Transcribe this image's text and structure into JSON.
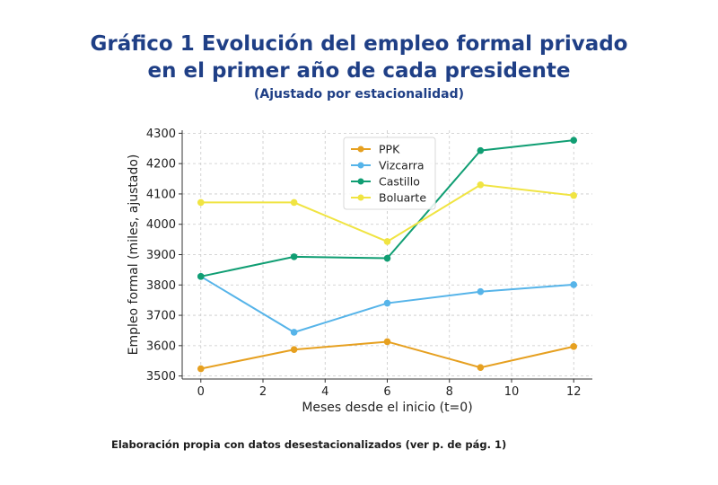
{
  "header": {
    "title_line1": "Gráfico 1 Evolución del empleo formal privado",
    "title_line2": "en el primer año de cada presidente",
    "subtitle": "(Ajustado por estacionalidad)"
  },
  "footer": {
    "source": "Elaboración propia con datos desestacionalizados (ver p. de pág. 1)"
  },
  "chart_data": {
    "type": "line",
    "xlabel": "Meses desde el inicio (t=0)",
    "ylabel": "Empleo formal (miles, ajustado)",
    "xlim": [
      -0.6,
      12.6
    ],
    "ylim": [
      3490,
      4310
    ],
    "xticks": [
      0,
      2,
      4,
      6,
      8,
      10,
      12
    ],
    "yticks": [
      3500,
      3600,
      3700,
      3800,
      3900,
      4000,
      4100,
      4200,
      4300
    ],
    "grid": true,
    "legend_position": "top-center",
    "series": [
      {
        "name": "PPK",
        "color": "#e6a020",
        "x": [
          0,
          3,
          6,
          9,
          12
        ],
        "values": [
          3524,
          3587,
          3613,
          3528,
          3597
        ]
      },
      {
        "name": "Vizcarra",
        "color": "#56b4e9",
        "x": [
          0,
          3,
          6,
          9,
          12
        ],
        "values": [
          3828,
          3644,
          3740,
          3778,
          3801
        ]
      },
      {
        "name": "Castillo",
        "color": "#109e73",
        "x": [
          0,
          3,
          6,
          9,
          12
        ],
        "values": [
          3828,
          3893,
          3888,
          4243,
          4277
        ]
      },
      {
        "name": "Boluarte",
        "color": "#f0e442",
        "x": [
          0,
          3,
          6,
          9,
          12
        ],
        "values": [
          4072,
          4072,
          3943,
          4130,
          4095
        ]
      }
    ]
  }
}
